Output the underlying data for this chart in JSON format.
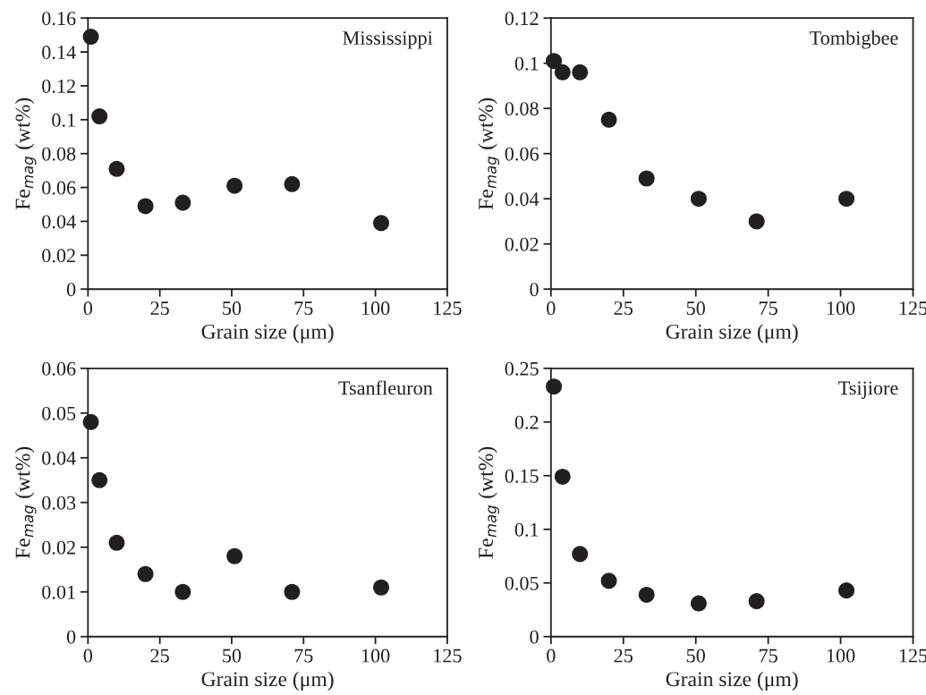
{
  "chart_data": [
    {
      "type": "scatter",
      "annotations": [
        "Mississippi"
      ],
      "xlabel": "Grain size (μm)",
      "ylabel": "Fe$_{mag}$ (wt%)",
      "x": [
        1,
        4,
        10,
        20,
        33,
        51,
        71,
        102
      ],
      "series": [
        {
          "color": "#231f20",
          "values": [
            0.149,
            0.102,
            0.071,
            0.049,
            0.051,
            0.061,
            0.062,
            0.039
          ]
        }
      ],
      "xlim": [
        0,
        125
      ],
      "xticks": [
        0,
        25,
        50,
        75,
        100,
        125
      ],
      "ylim": [
        0,
        0.16
      ],
      "yticks": [
        0,
        0.02,
        0.04,
        0.06,
        0.08,
        0.1,
        0.12,
        0.14,
        0.16
      ],
      "marker": "circle",
      "grid": false
    },
    {
      "type": "scatter",
      "annotations": [
        "Tombigbee"
      ],
      "xlabel": "Grain size (μm)",
      "ylabel": "Fe$_{mag}$ (wt%)",
      "x": [
        1,
        4,
        10,
        20,
        33,
        51,
        71,
        102
      ],
      "series": [
        {
          "color": "#231f20",
          "values": [
            0.101,
            0.096,
            0.096,
            0.075,
            0.049,
            0.04,
            0.03,
            0.04
          ]
        }
      ],
      "xlim": [
        0,
        125
      ],
      "xticks": [
        0,
        25,
        50,
        75,
        100,
        125
      ],
      "ylim": [
        0,
        0.12
      ],
      "yticks": [
        0,
        0.02,
        0.04,
        0.06,
        0.08,
        0.1,
        0.12
      ],
      "marker": "circle",
      "grid": false
    },
    {
      "type": "scatter",
      "annotations": [
        "Tsanfleuron"
      ],
      "xlabel": "Grain size (μm)",
      "ylabel": "Fe$_{mag}$ (wt%)",
      "x": [
        1,
        4,
        10,
        20,
        33,
        51,
        71,
        102
      ],
      "series": [
        {
          "color": "#231f20",
          "values": [
            0.048,
            0.035,
            0.021,
            0.014,
            0.01,
            0.018,
            0.01,
            0.011
          ]
        }
      ],
      "xlim": [
        0,
        125
      ],
      "xticks": [
        0,
        25,
        50,
        75,
        100,
        125
      ],
      "ylim": [
        0,
        0.06
      ],
      "yticks": [
        0,
        0.01,
        0.02,
        0.03,
        0.04,
        0.05,
        0.06
      ],
      "marker": "circle",
      "grid": false
    },
    {
      "type": "scatter",
      "annotations": [
        "Tsijiore"
      ],
      "xlabel": "Grain size (μm)",
      "ylabel": "Fe$_{mag}$ (wt%)",
      "x": [
        1,
        4,
        10,
        20,
        33,
        51,
        71,
        102
      ],
      "series": [
        {
          "color": "#231f20",
          "values": [
            0.233,
            0.149,
            0.077,
            0.052,
            0.039,
            0.031,
            0.033,
            0.043
          ]
        }
      ],
      "xlim": [
        0,
        125
      ],
      "xticks": [
        0,
        25,
        50,
        75,
        100,
        125
      ],
      "ylim": [
        0,
        0.25
      ],
      "yticks": [
        0,
        0.05,
        0.1,
        0.15,
        0.2,
        0.25
      ],
      "marker": "circle",
      "grid": false
    }
  ]
}
